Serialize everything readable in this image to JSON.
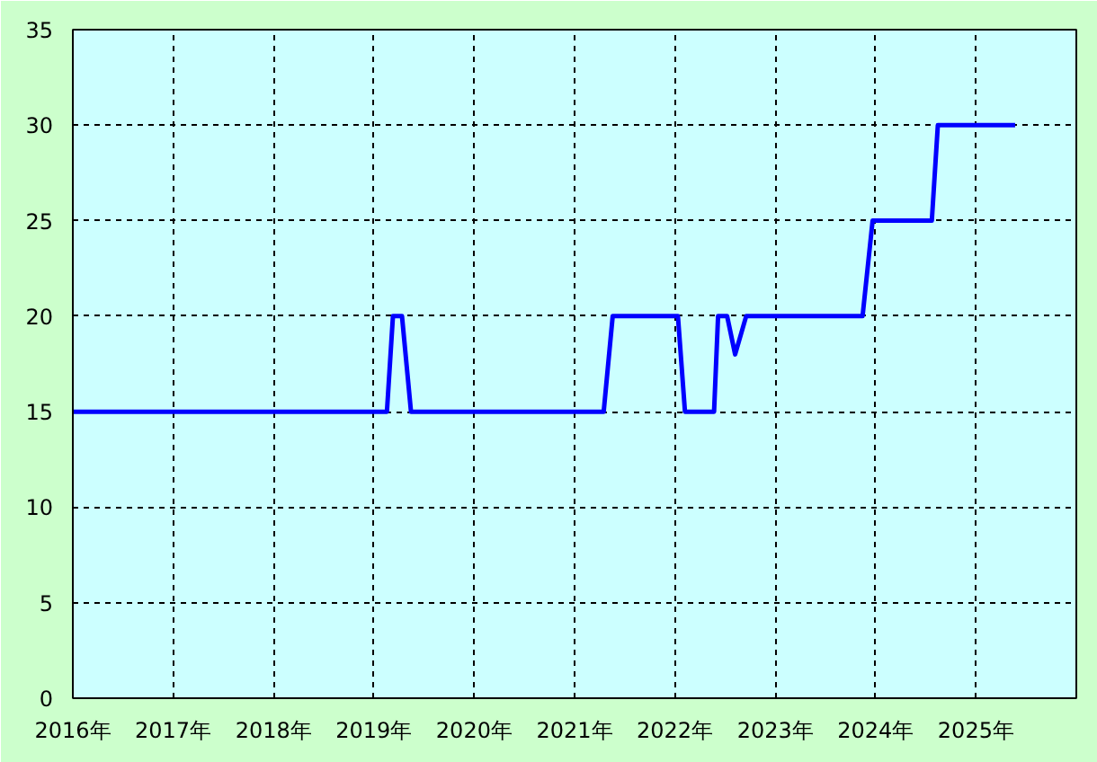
{
  "chart_data": {
    "type": "line",
    "x": [
      2016.0,
      2019.13,
      2019.19,
      2019.28,
      2019.37,
      2021.29,
      2021.38,
      2022.03,
      2022.1,
      2022.39,
      2022.43,
      2022.52,
      2022.6,
      2022.71,
      2023.87,
      2023.97,
      2024.56,
      2024.62,
      2025.39
    ],
    "series": [
      {
        "color": "#0000ff",
        "values": [
          15,
          15,
          20,
          20,
          15,
          15,
          20,
          20,
          15,
          15,
          20,
          20,
          18,
          20,
          20,
          25,
          25,
          30,
          30
        ]
      }
    ],
    "xlim": [
      2016,
      2026
    ],
    "xticks": [
      {
        "value": 2016,
        "label": "2016年"
      },
      {
        "value": 2017,
        "label": "2017年"
      },
      {
        "value": 2018,
        "label": "2018年"
      },
      {
        "value": 2019,
        "label": "2019年"
      },
      {
        "value": 2020,
        "label": "2020年"
      },
      {
        "value": 2021,
        "label": "2021年"
      },
      {
        "value": 2022,
        "label": "2022年"
      },
      {
        "value": 2023,
        "label": "2023年"
      },
      {
        "value": 2024,
        "label": "2024年"
      },
      {
        "value": 2025,
        "label": "2025年"
      }
    ],
    "ylim": [
      0,
      35
    ],
    "yticks": [
      0,
      5,
      10,
      15,
      20,
      25,
      30,
      35
    ],
    "grid": true,
    "marker": "none",
    "line_style": "solid"
  }
}
